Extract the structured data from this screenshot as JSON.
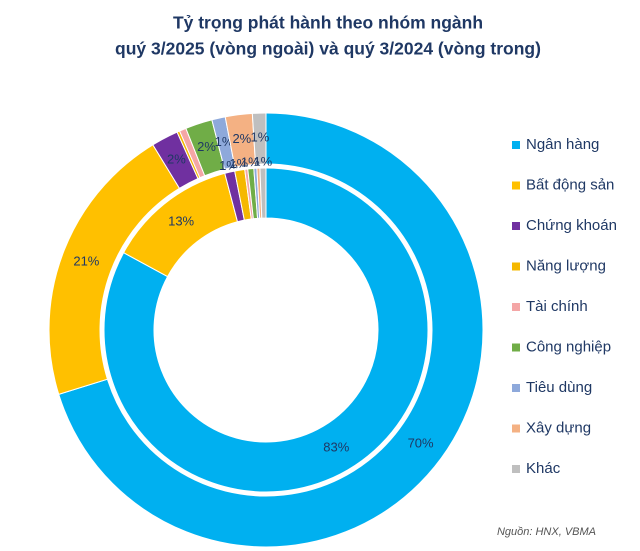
{
  "chart_data": {
    "type": "donut",
    "title": [
      "Tỷ trọng phát hành theo nhóm ngành",
      "quý 3/2025 (vòng ngoài) và quý 3/2024 (vòng trong)"
    ],
    "categories": [
      "Ngân hàng",
      "Bất động sản",
      "Chứng khoán",
      "Năng lượng",
      "Tài chính",
      "Công nghiệp",
      "Tiêu dùng",
      "Xây dựng",
      "Khác"
    ],
    "colors": [
      "#00b0f0",
      "#ffc000",
      "#7030a0",
      "#f5b800",
      "#f4a6a6",
      "#70ad47",
      "#8ea9db",
      "#f4b183",
      "#bfbfbf"
    ],
    "rings": [
      {
        "values": [
          70,
          21,
          2,
          0.2,
          0.5,
          2,
          1,
          2,
          1
        ],
        "value_labels": [
          "70%",
          "21%",
          "2%",
          null,
          null,
          "2%",
          "1%",
          "2%",
          "1%"
        ]
      },
      {
        "values": [
          83,
          13,
          1,
          1,
          0.3,
          0.6,
          0.3,
          0.3,
          0.6
        ],
        "value_labels": [
          "83%",
          "13%",
          "1%",
          "1%",
          null,
          "1%",
          null,
          null,
          "1%"
        ]
      }
    ],
    "source": "Nguồn: HNX, VBMA"
  }
}
